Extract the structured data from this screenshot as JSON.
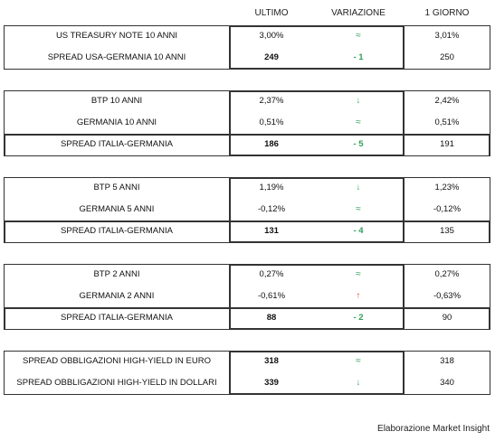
{
  "headers": {
    "last": "ULTIMO",
    "change": "VARIAZIONE",
    "prev": "1 GIORNO"
  },
  "groups": [
    {
      "rows": [
        {
          "label": "US TREASURY NOTE 10 ANNI",
          "last": "3,00%",
          "change": "≈",
          "change_type": "approx",
          "prev": "3,01%"
        },
        {
          "label": "SPREAD USA-GERMANIA 10 ANNI",
          "last": "249",
          "change": "- 1",
          "change_type": "text-green",
          "prev": "250"
        }
      ]
    },
    {
      "rows": [
        {
          "label": "BTP 10 ANNI",
          "last": "2,37%",
          "change": "↓",
          "change_type": "down",
          "prev": "2,42%"
        },
        {
          "label": "GERMANIA 10 ANNI",
          "last": "0,51%",
          "change": "≈",
          "change_type": "approx",
          "prev": "0,51%"
        },
        {
          "label": "SPREAD ITALIA-GERMANIA",
          "last": "186",
          "change": "- 5",
          "change_type": "text-green",
          "prev": "191"
        }
      ]
    },
    {
      "rows": [
        {
          "label": "BTP 5 ANNI",
          "last": "1,19%",
          "change": "↓",
          "change_type": "down",
          "prev": "1,23%"
        },
        {
          "label": "GERMANIA 5 ANNI",
          "last": "-0,12%",
          "change": "≈",
          "change_type": "approx",
          "prev": "-0,12%"
        },
        {
          "label": "SPREAD ITALIA-GERMANIA",
          "last": "131",
          "change": "- 4",
          "change_type": "text-green",
          "prev": "135"
        }
      ]
    },
    {
      "rows": [
        {
          "label": "BTP 2 ANNI",
          "last": "0,27%",
          "change": "≈",
          "change_type": "approx",
          "prev": "0,27%"
        },
        {
          "label": "GERMANIA 2 ANNI",
          "last": "-0,61%",
          "change": "↑",
          "change_type": "up",
          "prev": "-0,63%"
        },
        {
          "label": "SPREAD ITALIA-GERMANIA",
          "last": "88",
          "change": "- 2",
          "change_type": "text-green",
          "prev": "90"
        }
      ]
    },
    {
      "rows": [
        {
          "label": "SPREAD OBBLIGAZIONI HIGH-YIELD IN EURO",
          "last": "318",
          "change": "≈",
          "change_type": "approx",
          "prev": "318"
        },
        {
          "label": "SPREAD OBBLIGAZIONI HIGH-YIELD IN DOLLARI",
          "last": "339",
          "change": "↓",
          "change_type": "down",
          "prev": "340"
        }
      ]
    }
  ],
  "footer": "Elaborazione Market Insight"
}
